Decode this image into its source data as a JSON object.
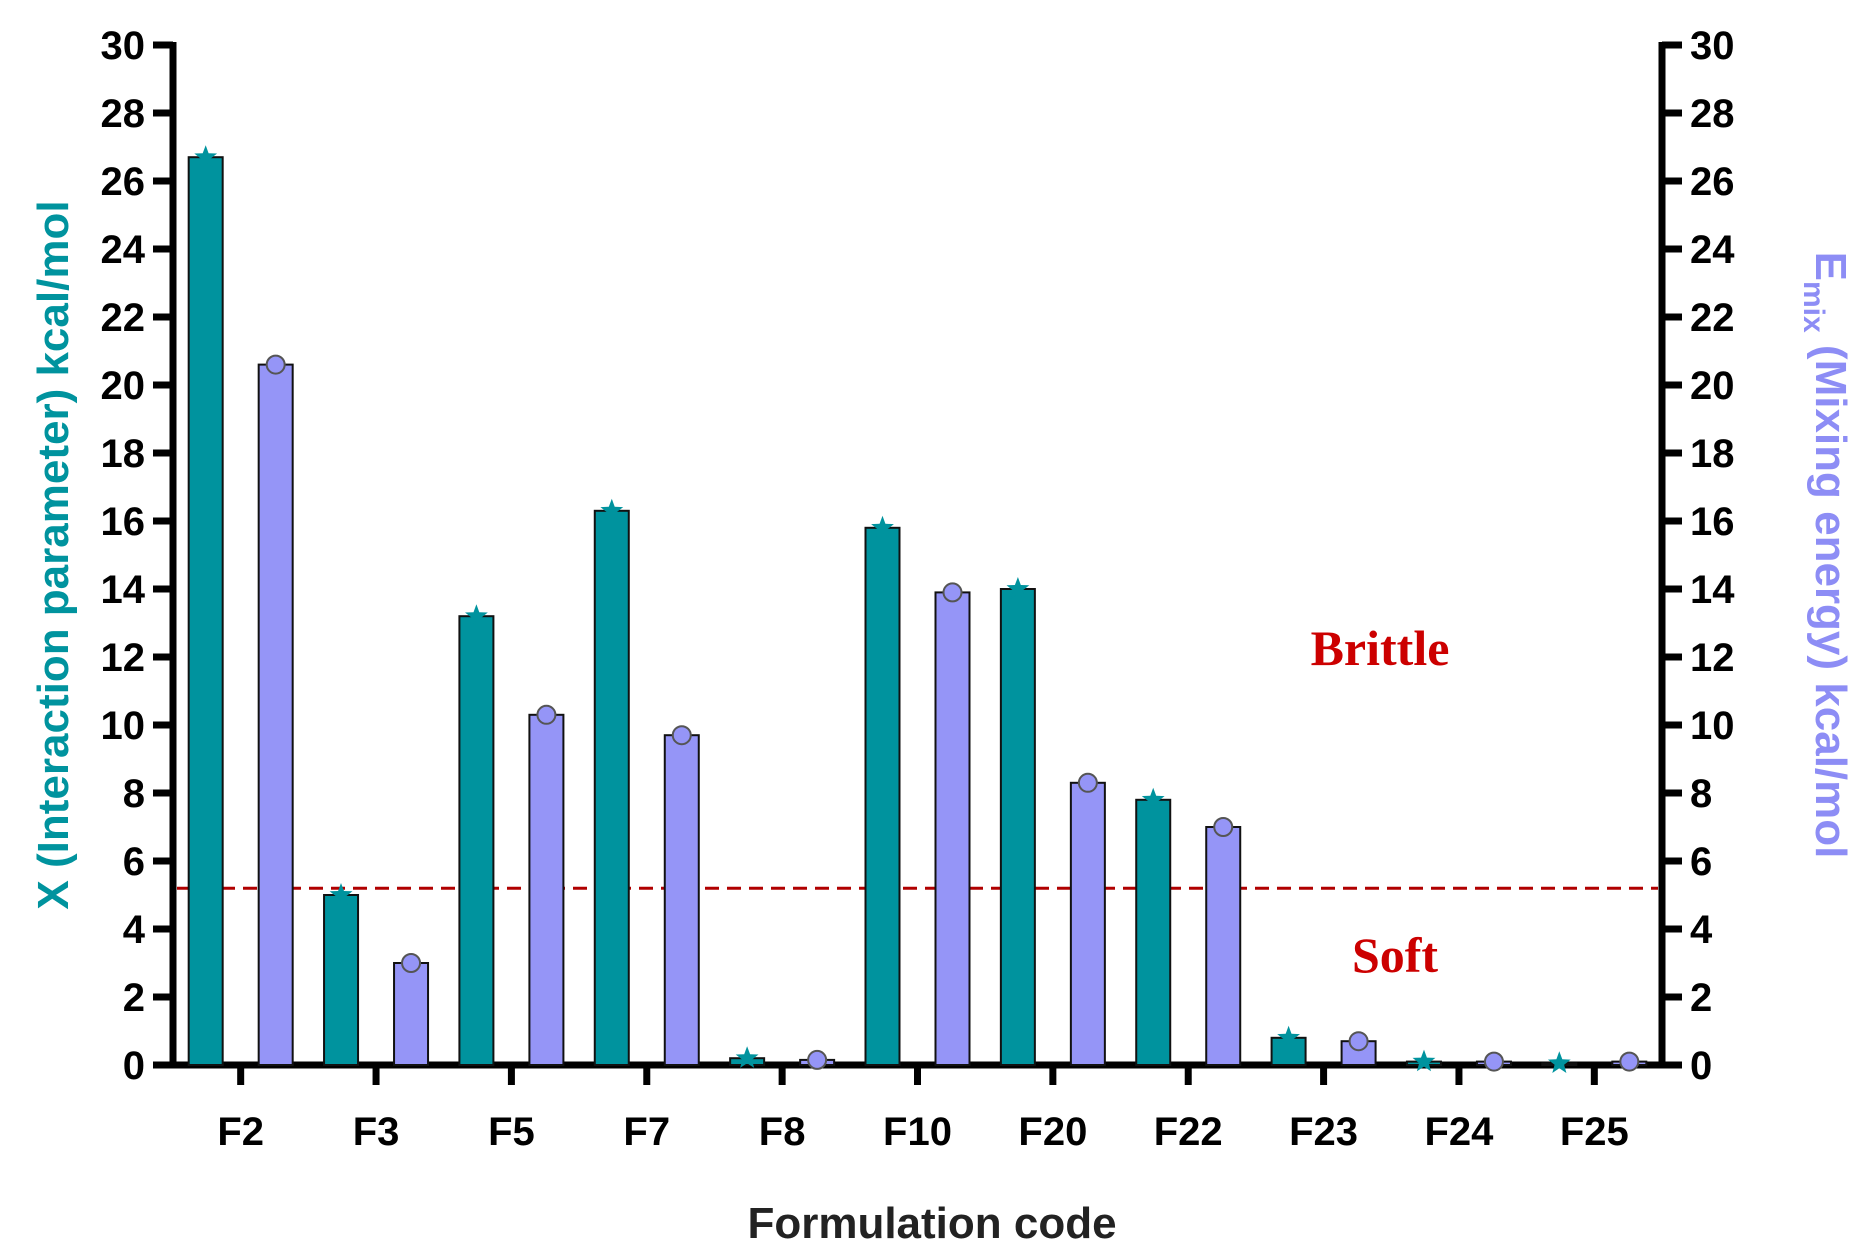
{
  "chart_data": {
    "type": "bar",
    "categories": [
      "F2",
      "F3",
      "F5",
      "F7",
      "F8",
      "F10",
      "F20",
      "F22",
      "F23",
      "F24",
      "F25"
    ],
    "series": [
      {
        "name": "X (Interaction parameter) kcal/mol",
        "axis": "left",
        "color": "#00939e",
        "marker": "star",
        "values": [
          26.7,
          5.0,
          13.2,
          16.3,
          0.2,
          15.8,
          14.0,
          7.8,
          0.8,
          0.1,
          0.05
        ]
      },
      {
        "name": "Emix (Mixing energy) kcal/mol",
        "axis": "right",
        "color": "#9595f7",
        "marker": "circle",
        "values": [
          20.6,
          3.0,
          10.3,
          9.7,
          0.15,
          13.9,
          8.3,
          7.0,
          0.7,
          0.1,
          0.1
        ]
      }
    ],
    "xlabel": "Formulation code",
    "ylabel_left": "X (Interaction parameter) kcal/mol",
    "ylabel_right_main": "E",
    "ylabel_right_sub": "mix",
    "ylabel_right_rest": " (Mixing energy) kcal/mol",
    "ylim": [
      0,
      30
    ],
    "yticks": [
      "0",
      "2",
      "4",
      "6",
      "8",
      "10",
      "12",
      "14",
      "16",
      "18",
      "20",
      "22",
      "24",
      "26",
      "28",
      "30"
    ],
    "threshold": {
      "value": 5.2,
      "color": "#b00000",
      "style": "dashed"
    },
    "annotations": {
      "upper": "Brittle",
      "lower": "Soft"
    },
    "colors": {
      "left_title": "#00939e",
      "right_title": "#8d8df5",
      "annotation": "#cc0000"
    }
  }
}
